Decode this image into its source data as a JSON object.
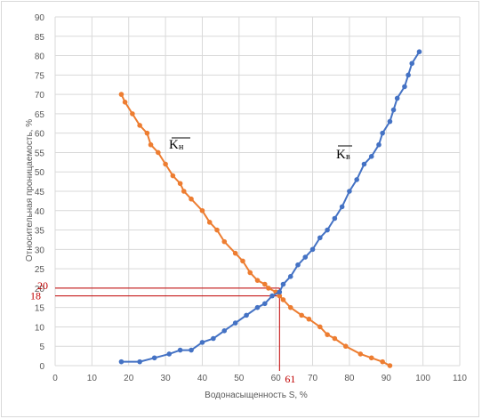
{
  "chart_data": {
    "type": "line",
    "title": "",
    "xlabel": "Водонасыщенность S, %",
    "ylabel": "Относительная проницаемость, %",
    "xlim": [
      0,
      110
    ],
    "ylim": [
      0,
      90
    ],
    "x_ticks": [
      0,
      10,
      20,
      30,
      40,
      50,
      60,
      70,
      80,
      90,
      100,
      110
    ],
    "y_ticks": [
      0,
      5,
      10,
      15,
      20,
      25,
      30,
      35,
      40,
      45,
      50,
      55,
      60,
      65,
      70,
      75,
      80,
      85,
      90
    ],
    "grid": true,
    "legend": "none",
    "series": [
      {
        "name": "",
        "label_main": "K",
        "label_sub": "н",
        "color": "#ED7D31",
        "points": [
          [
            18,
            70
          ],
          [
            19,
            68
          ],
          [
            21,
            65
          ],
          [
            23,
            62
          ],
          [
            25,
            60
          ],
          [
            26,
            57
          ],
          [
            28,
            55
          ],
          [
            30,
            52
          ],
          [
            32,
            49
          ],
          [
            34,
            47
          ],
          [
            35,
            45
          ],
          [
            37,
            43
          ],
          [
            40,
            40
          ],
          [
            42,
            37
          ],
          [
            44,
            35
          ],
          [
            46,
            32
          ],
          [
            49,
            29
          ],
          [
            51,
            27
          ],
          [
            53,
            24
          ],
          [
            55,
            22
          ],
          [
            57,
            21
          ],
          [
            58,
            20
          ],
          [
            60,
            19
          ],
          [
            61,
            18
          ],
          [
            62,
            17
          ],
          [
            64,
            15
          ],
          [
            67,
            13
          ],
          [
            69,
            12
          ],
          [
            72,
            10
          ],
          [
            74,
            8
          ],
          [
            76,
            7
          ],
          [
            79,
            5
          ],
          [
            83,
            3
          ],
          [
            86,
            2
          ],
          [
            89,
            1
          ],
          [
            91,
            0
          ]
        ]
      },
      {
        "name": "",
        "label_main": "K",
        "label_sub": "в",
        "color": "#4472C4",
        "points": [
          [
            18,
            1
          ],
          [
            23,
            1
          ],
          [
            27,
            2
          ],
          [
            31,
            3
          ],
          [
            34,
            4
          ],
          [
            37,
            4
          ],
          [
            40,
            6
          ],
          [
            43,
            7
          ],
          [
            46,
            9
          ],
          [
            49,
            11
          ],
          [
            52,
            13
          ],
          [
            55,
            15
          ],
          [
            57,
            16
          ],
          [
            59,
            18
          ],
          [
            61,
            19
          ],
          [
            62,
            21
          ],
          [
            64,
            23
          ],
          [
            66,
            26
          ],
          [
            68,
            28
          ],
          [
            70,
            30
          ],
          [
            72,
            33
          ],
          [
            74,
            35
          ],
          [
            76,
            38
          ],
          [
            78,
            41
          ],
          [
            80,
            45
          ],
          [
            82,
            48
          ],
          [
            84,
            52
          ],
          [
            86,
            54
          ],
          [
            88,
            57
          ],
          [
            89,
            60
          ],
          [
            91,
            63
          ],
          [
            92,
            66
          ],
          [
            93,
            69
          ],
          [
            95,
            72
          ],
          [
            96,
            75
          ],
          [
            97,
            78
          ],
          [
            99,
            81
          ]
        ]
      }
    ],
    "annotation": {
      "color": "#c00000",
      "intersection_x": 61,
      "levels": [
        20,
        18
      ],
      "labels": {
        "y_upper": "20",
        "y_lower": "18",
        "x": "61"
      }
    }
  }
}
